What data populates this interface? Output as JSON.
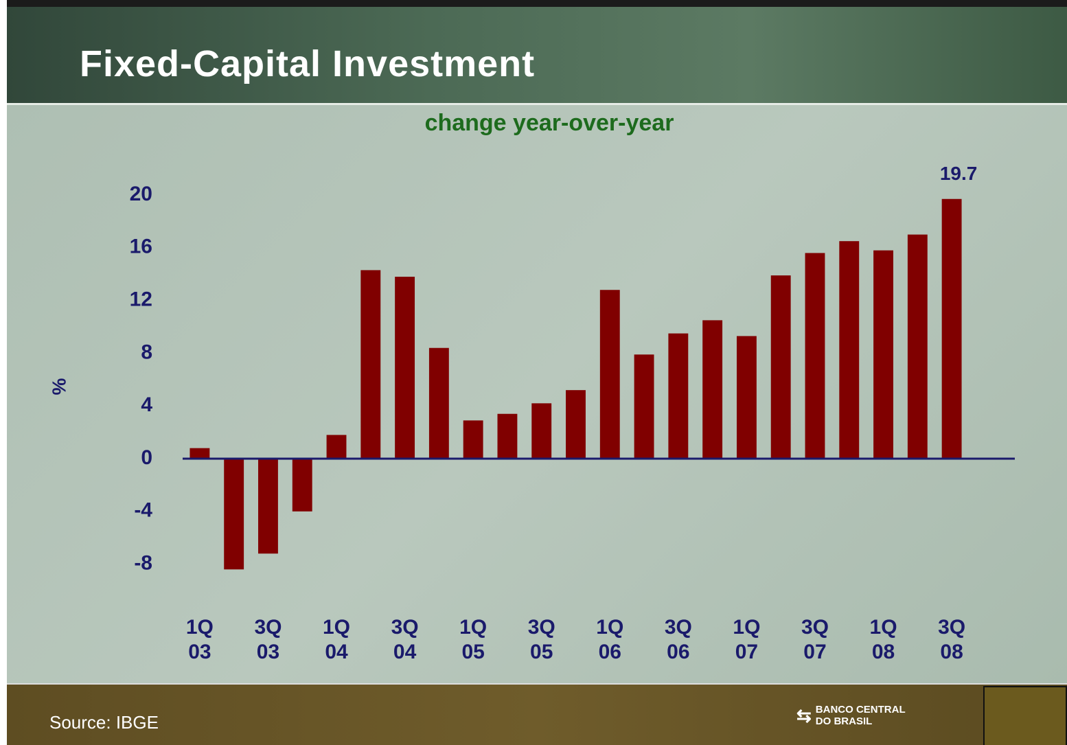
{
  "header": {
    "title": "Fixed-Capital Investment"
  },
  "footer": {
    "source": "Source: IBGE",
    "logo": "BANCO CENTRAL\nDO BRASIL"
  },
  "chart_data": {
    "type": "bar",
    "subtitle": "change year-over-year",
    "y_label": "%",
    "categories": [
      "1Q\n03",
      null,
      "3Q\n03",
      null,
      "1Q\n04",
      null,
      "3Q\n04",
      null,
      "1Q\n05",
      null,
      "3Q\n05",
      null,
      "1Q\n06",
      null,
      "3Q\n06",
      null,
      "1Q\n07",
      null,
      "3Q\n07",
      null,
      "1Q\n08",
      null,
      "3Q\n08"
    ],
    "values": [
      0.8,
      -8.4,
      -7.2,
      -4.0,
      1.8,
      14.3,
      13.8,
      8.4,
      2.9,
      3.4,
      4.2,
      5.2,
      12.8,
      7.9,
      9.5,
      10.5,
      9.3,
      13.9,
      15.6,
      16.5,
      15.8,
      17.0,
      19.7
    ],
    "color": "#800000",
    "ylim": [
      -10,
      20
    ],
    "yticks": [
      -8,
      -4,
      0,
      4,
      8,
      12,
      16,
      20
    ],
    "grid": false
  }
}
